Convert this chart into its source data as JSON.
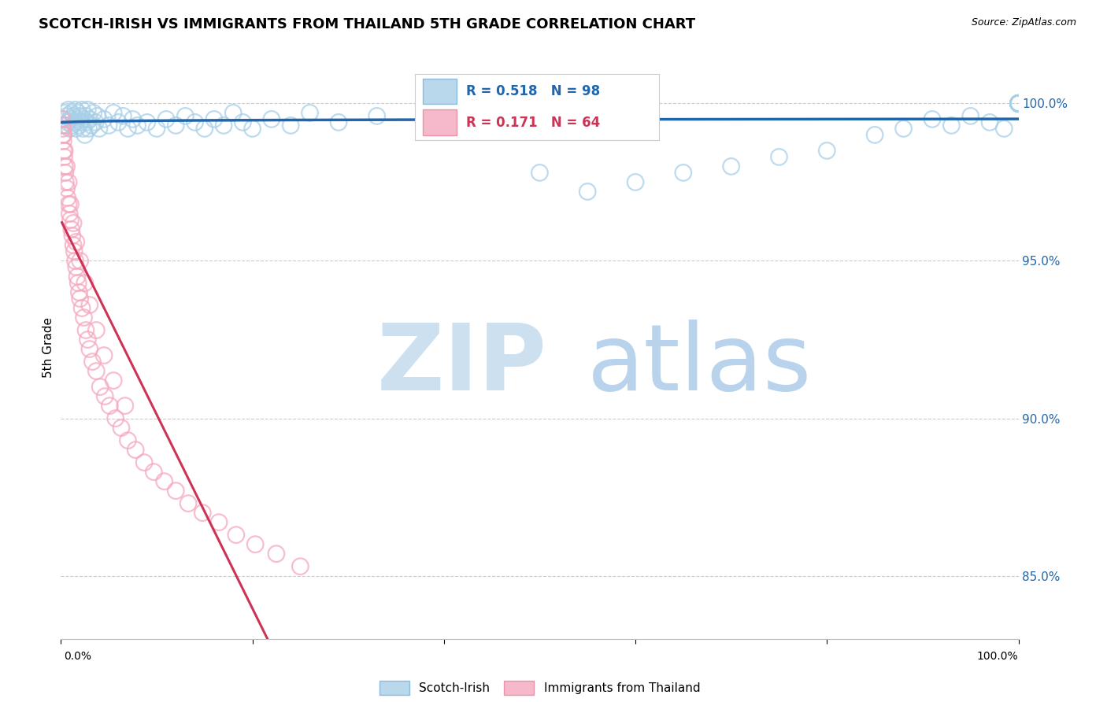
{
  "title": "SCOTCH-IRISH VS IMMIGRANTS FROM THAILAND 5TH GRADE CORRELATION CHART",
  "source": "Source: ZipAtlas.com",
  "ylabel": "5th Grade",
  "xlim": [
    0,
    100
  ],
  "ylim": [
    83.0,
    101.5
  ],
  "yticks": [
    85.0,
    90.0,
    95.0,
    100.0
  ],
  "ytick_labels": [
    "85.0%",
    "90.0%",
    "95.0%",
    "100.0%"
  ],
  "legend_label_blue": "Scotch-Irish",
  "legend_label_pink": "Immigrants from Thailand",
  "r_blue": 0.518,
  "n_blue": 98,
  "r_pink": 0.171,
  "n_pink": 64,
  "blue_color": "#a8cfe8",
  "pink_color": "#f4a8be",
  "blue_edge": "#7ab0d8",
  "pink_edge": "#e8809a",
  "blue_line_color": "#2166ac",
  "pink_line_color": "#cc3355",
  "ytick_color": "#2166ac",
  "watermark_zip_color": "#cce0f0",
  "watermark_atlas_color": "#a8c8e8",
  "blue_x": [
    0.3,
    0.4,
    0.5,
    0.6,
    0.7,
    0.8,
    0.9,
    1.0,
    1.1,
    1.2,
    1.3,
    1.4,
    1.5,
    1.6,
    1.7,
    1.8,
    1.9,
    2.0,
    2.1,
    2.2,
    2.3,
    2.4,
    2.5,
    2.6,
    2.7,
    2.8,
    2.9,
    3.0,
    3.2,
    3.4,
    3.6,
    3.8,
    4.0,
    4.5,
    5.0,
    5.5,
    6.0,
    6.5,
    7.0,
    7.5,
    8.0,
    9.0,
    10.0,
    11.0,
    12.0,
    13.0,
    14.0,
    15.0,
    16.0,
    17.0,
    18.0,
    19.0,
    20.0,
    22.0,
    24.0,
    26.0,
    29.0,
    33.0,
    38.0,
    44.0,
    50.0,
    55.0,
    60.0,
    65.0,
    70.0,
    75.0,
    80.0,
    85.0,
    88.0,
    91.0,
    93.0,
    95.0,
    97.0,
    98.5,
    100.0,
    100.0,
    100.0,
    100.0,
    100.0,
    100.0,
    100.0,
    100.0,
    100.0,
    100.0,
    100.0,
    100.0,
    100.0,
    100.0,
    100.0,
    100.0,
    100.0,
    100.0,
    100.0,
    100.0,
    100.0,
    100.0,
    100.0,
    100.0
  ],
  "blue_y": [
    99.5,
    99.7,
    99.3,
    99.6,
    99.4,
    99.8,
    99.2,
    99.5,
    99.7,
    99.3,
    99.6,
    99.4,
    99.8,
    99.2,
    99.5,
    99.7,
    99.3,
    99.6,
    99.4,
    99.8,
    99.2,
    99.5,
    99.0,
    99.6,
    99.4,
    99.8,
    99.2,
    99.5,
    99.3,
    99.7,
    99.4,
    99.6,
    99.2,
    99.5,
    99.3,
    99.7,
    99.4,
    99.6,
    99.2,
    99.5,
    99.3,
    99.4,
    99.2,
    99.5,
    99.3,
    99.6,
    99.4,
    99.2,
    99.5,
    99.3,
    99.7,
    99.4,
    99.2,
    99.5,
    99.3,
    99.7,
    99.4,
    99.6,
    99.2,
    99.5,
    97.8,
    97.2,
    97.5,
    97.8,
    98.0,
    98.3,
    98.5,
    99.0,
    99.2,
    99.5,
    99.3,
    99.6,
    99.4,
    99.2,
    100.0,
    100.0,
    100.0,
    100.0,
    100.0,
    100.0,
    100.0,
    100.0,
    100.0,
    100.0,
    100.0,
    100.0,
    100.0,
    100.0,
    100.0,
    100.0,
    100.0,
    100.0,
    100.0,
    100.0,
    100.0,
    100.0,
    100.0,
    100.0
  ],
  "pink_x": [
    0.1,
    0.15,
    0.2,
    0.25,
    0.3,
    0.35,
    0.4,
    0.45,
    0.5,
    0.6,
    0.7,
    0.8,
    0.9,
    1.0,
    1.1,
    1.2,
    1.3,
    1.4,
    1.5,
    1.6,
    1.7,
    1.8,
    1.9,
    2.0,
    2.2,
    2.4,
    2.6,
    2.8,
    3.0,
    3.3,
    3.7,
    4.1,
    4.6,
    5.1,
    5.7,
    6.3,
    7.0,
    7.8,
    8.7,
    9.7,
    10.8,
    12.0,
    13.3,
    14.8,
    16.5,
    18.3,
    20.3,
    22.5,
    25.0,
    0.2,
    0.3,
    0.4,
    0.6,
    0.8,
    1.0,
    1.3,
    1.6,
    2.0,
    2.5,
    3.0,
    3.7,
    4.5,
    5.5,
    6.7
  ],
  "pink_y": [
    99.5,
    99.3,
    99.0,
    98.8,
    98.5,
    98.3,
    98.0,
    97.8,
    97.5,
    97.3,
    97.0,
    96.8,
    96.5,
    96.3,
    96.0,
    95.8,
    95.5,
    95.3,
    95.0,
    94.8,
    94.5,
    94.3,
    94.0,
    93.8,
    93.5,
    93.2,
    92.8,
    92.5,
    92.2,
    91.8,
    91.5,
    91.0,
    90.7,
    90.4,
    90.0,
    89.7,
    89.3,
    89.0,
    88.6,
    88.3,
    88.0,
    87.7,
    87.3,
    87.0,
    86.7,
    86.3,
    86.0,
    85.7,
    85.3,
    99.2,
    99.0,
    98.5,
    98.0,
    97.5,
    96.8,
    96.2,
    95.6,
    95.0,
    94.3,
    93.6,
    92.8,
    92.0,
    91.2,
    90.4
  ]
}
